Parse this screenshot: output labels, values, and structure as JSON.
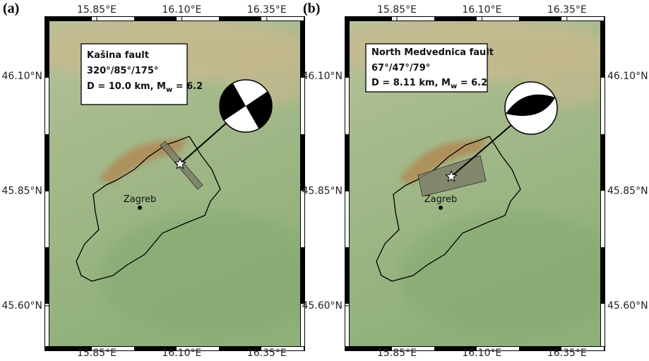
{
  "lonlim": [
    15.711,
    16.448
  ],
  "latlim": [
    45.512,
    46.22
  ],
  "lon_ticks": [
    {
      "value": 15.85,
      "label": "15.85°E"
    },
    {
      "value": 16.1,
      "label": "16.10°E"
    },
    {
      "value": 16.35,
      "label": "16.35°E"
    }
  ],
  "lat_ticks": [
    {
      "value": 46.1,
      "label": "46.10°N"
    },
    {
      "value": 45.85,
      "label": "45.85°N"
    },
    {
      "value": 45.6,
      "label": "45.60°N"
    }
  ],
  "panels": [
    {
      "label": "(a)",
      "fault": "Kašina fault",
      "angles": "320°/85°/175°",
      "depth": "D = 10.0 km, M",
      "sub": "w",
      "mag": " = 6.2",
      "city": "Zagreb"
    },
    {
      "label": "(b)",
      "fault": "North Medvednica fault",
      "angles": "67°/47°/79°",
      "depth": "D = 8.11 km, M",
      "sub": "w",
      "mag": " = 6.2",
      "city": "Zagreb"
    }
  ]
}
